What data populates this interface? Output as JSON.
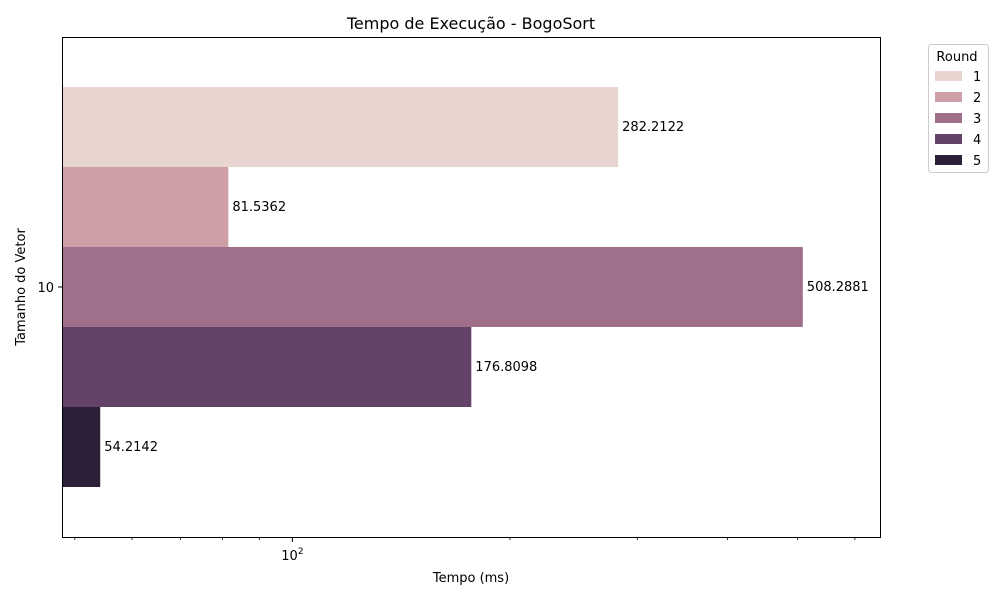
{
  "chart_data": {
    "type": "bar",
    "orientation": "horizontal",
    "title": "Tempo de Execução - BogoSort",
    "xlabel": "Tempo (ms)",
    "ylabel": "Tamanho do Vetor",
    "xscale": "log",
    "xlim": [
      48,
      650
    ],
    "categories": [
      "10"
    ],
    "xticks": [
      {
        "value": 100,
        "base": "10",
        "exp": "2"
      }
    ],
    "x_minor_ticks": [
      50,
      60,
      70,
      80,
      90,
      200,
      300,
      400,
      500,
      600
    ],
    "legend": {
      "title": "Round",
      "placement": "outside-top-right"
    },
    "series": [
      {
        "name": "1",
        "values": [
          282.2122
        ],
        "label": "282.2122",
        "color": "#e8d5d0"
      },
      {
        "name": "2",
        "values": [
          81.5362
        ],
        "label": "81.5362",
        "color": "#cf9fa8"
      },
      {
        "name": "3",
        "values": [
          508.2881
        ],
        "label": "508.2881",
        "color": "#a06f8b"
      },
      {
        "name": "4",
        "values": [
          176.8098
        ],
        "label": "176.8098",
        "color": "#634368"
      },
      {
        "name": "5",
        "values": [
          54.2142
        ],
        "label": "54.2142",
        "color": "#2e1f38"
      }
    ]
  }
}
